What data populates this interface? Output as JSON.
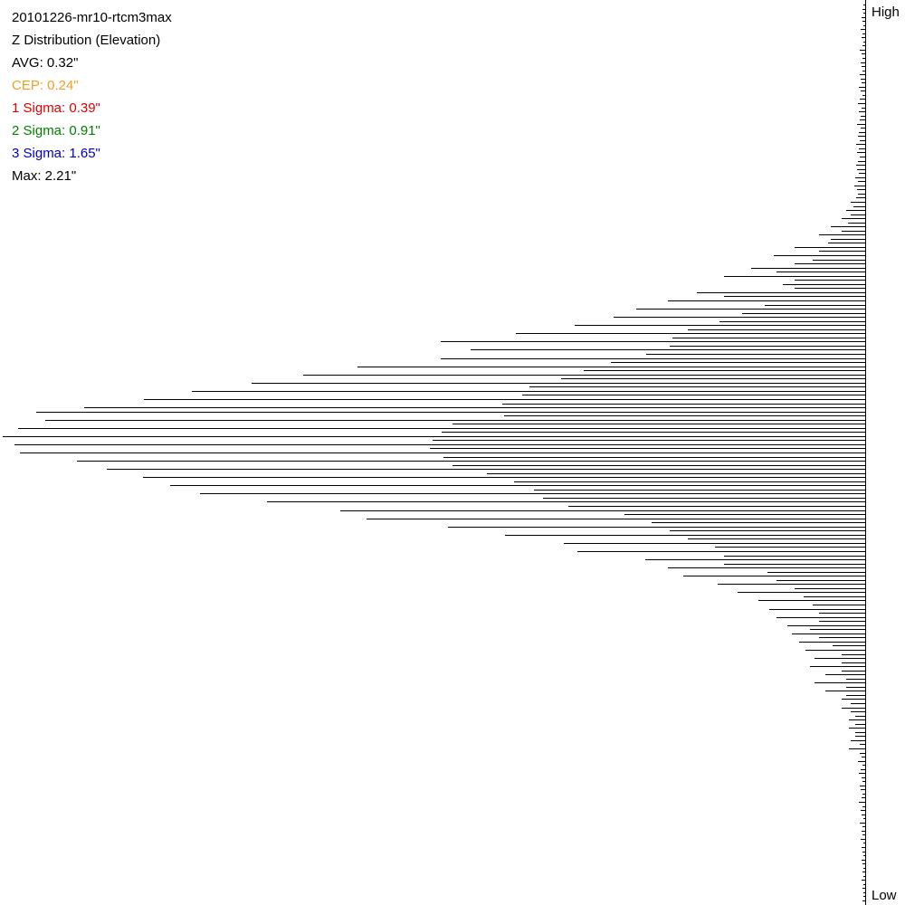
{
  "chart_data": {
    "type": "hbar",
    "title": "20101226-mr10-rtcm3max",
    "subtitle": "Z Distribution (Elevation)",
    "annotations": [
      {
        "text": "AVG: 0.32\"",
        "color": "#000000"
      },
      {
        "text": "CEP: 0.24\"",
        "color": "#f0a020"
      },
      {
        "text": "1 Sigma: 0.39\"",
        "color": "#e00000"
      },
      {
        "text": "2 Sigma: 0.91\"",
        "color": "#008000"
      },
      {
        "text": "3 Sigma: 1.65\"",
        "color": "#0000c0"
      },
      {
        "text": "Max: 2.21\"",
        "color": "#000000"
      }
    ],
    "top_label": "High",
    "bottom_label": "Low",
    "color": "#000000",
    "values": [
      2,
      3,
      2,
      4,
      3,
      2,
      5,
      3,
      4,
      2,
      3,
      6,
      4,
      3,
      5,
      4,
      3,
      6,
      5,
      4,
      7,
      5,
      3,
      6,
      8,
      4,
      7,
      5,
      6,
      9,
      5,
      7,
      8,
      6,
      10,
      7,
      9,
      6,
      8,
      10,
      9,
      7,
      11,
      8,
      12,
      9,
      8,
      10,
      16,
      13,
      21,
      16,
      26,
      19,
      38,
      26,
      51,
      38,
      41,
      78,
      51,
      101,
      58,
      78,
      126,
      98,
      156,
      78,
      91,
      78,
      186,
      156,
      218,
      111,
      253,
      136,
      278,
      161,
      321,
      196,
      386,
      213,
      469,
      216,
      436,
      242,
      469,
      281,
      561,
      311,
      621,
      336,
      678,
      371,
      744,
      379,
      797,
      401,
      863,
      916,
      399,
      906,
      456,
      936,
      468,
      953,
      478,
      940,
      481,
      934,
      466,
      871,
      456,
      838,
      418,
      798,
      388,
      768,
      366,
      735,
      356,
      661,
      328,
      580,
      266,
      551,
      236,
      461,
      216,
      398,
      196,
      333,
      166,
      318,
      156,
      243,
      156,
      218,
      108,
      201,
      98,
      163,
      78,
      141,
      68,
      118,
      58,
      106,
      51,
      98,
      51,
      86,
      61,
      81,
      51,
      73,
      36,
      66,
      26,
      56,
      26,
      61,
      26,
      44,
      21,
      56,
      21,
      44,
      21,
      26,
      16,
      26,
      16,
      11,
      18,
      11,
      18,
      11,
      11,
      16,
      6,
      18,
      6,
      4,
      8,
      3,
      5,
      7,
      4,
      3,
      6,
      5,
      3,
      4,
      7,
      3,
      5,
      4,
      2,
      6,
      3,
      4,
      3,
      5,
      2,
      4,
      3,
      2,
      4,
      3,
      2,
      3,
      2,
      4,
      2,
      3,
      2,
      2,
      3
    ]
  }
}
